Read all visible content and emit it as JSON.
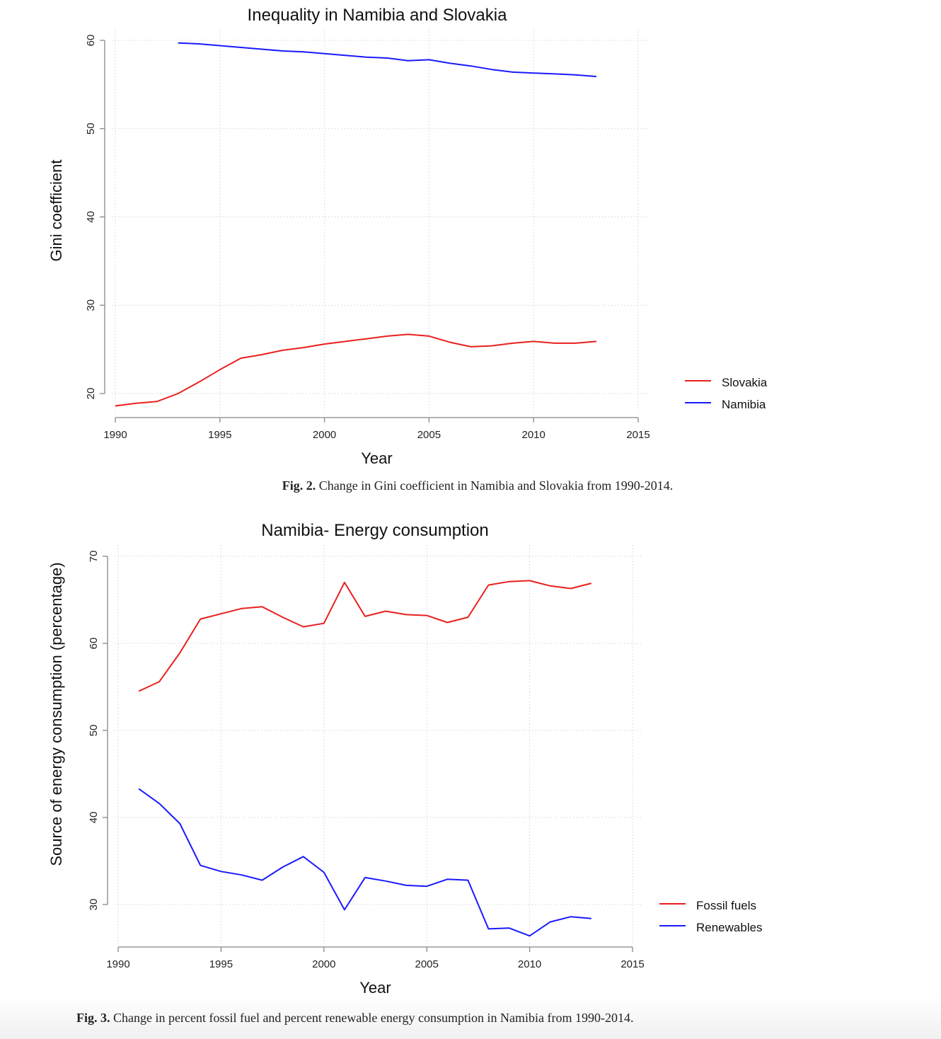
{
  "chart_data": [
    {
      "type": "line",
      "title": "Inequality in Namibia and Slovakia",
      "xlabel": "Year",
      "ylabel": "Gini coefficient",
      "xlim": [
        1990,
        2015
      ],
      "ylim": [
        17.5,
        61
      ],
      "xticks": [
        1990,
        1995,
        2000,
        2005,
        2010,
        2015
      ],
      "yticks": [
        20,
        30,
        40,
        50,
        60
      ],
      "grid": true,
      "legend": "right",
      "series": [
        {
          "name": "Slovakia",
          "color": "#e8201e",
          "x": [
            1990,
            1991,
            1992,
            1993,
            1994,
            1995,
            1996,
            1997,
            1998,
            1999,
            2000,
            2001,
            2002,
            2003,
            2004,
            2005,
            2006,
            2007,
            2008,
            2009,
            2010,
            2011,
            2012,
            2013
          ],
          "y": [
            18.6,
            18.9,
            19.1,
            20.0,
            21.3,
            22.7,
            24.0,
            24.4,
            24.9,
            25.2,
            25.6,
            25.9,
            26.2,
            26.5,
            26.7,
            26.5,
            25.8,
            25.3,
            25.4,
            25.7,
            25.9,
            25.7,
            25.7,
            25.9
          ]
        },
        {
          "name": "Namibia",
          "color": "#1a1aff",
          "x": [
            1993,
            1994,
            1995,
            1996,
            1997,
            1998,
            1999,
            2000,
            2001,
            2002,
            2003,
            2004,
            2005,
            2006,
            2007,
            2008,
            2009,
            2010,
            2011,
            2012,
            2013
          ],
          "y": [
            59.7,
            59.6,
            59.4,
            59.2,
            59.0,
            58.8,
            58.7,
            58.5,
            58.3,
            58.1,
            58.0,
            57.7,
            57.8,
            57.4,
            57.1,
            56.7,
            56.4,
            56.3,
            56.2,
            56.1,
            55.9
          ]
        }
      ]
    },
    {
      "type": "line",
      "title": "Namibia- Energy consumption",
      "xlabel": "Year",
      "ylabel": "Source of energy consumption (percentage)",
      "xlim": [
        1990,
        2015
      ],
      "ylim": [
        25,
        71
      ],
      "xticks": [
        1990,
        1995,
        2000,
        2005,
        2010,
        2015
      ],
      "yticks": [
        30,
        40,
        50,
        60,
        70
      ],
      "grid": true,
      "legend": "right",
      "series": [
        {
          "name": "Fossil fuels",
          "color": "#e8201e",
          "x": [
            1991,
            1992,
            1993,
            1994,
            1995,
            1996,
            1997,
            1998,
            1999,
            2000,
            2001,
            2002,
            2003,
            2004,
            2005,
            2006,
            2007,
            2008,
            2009,
            2010,
            2011,
            2012,
            2013
          ],
          "y": [
            54.5,
            55.6,
            58.9,
            62.8,
            63.4,
            64.0,
            64.2,
            63.0,
            61.9,
            62.3,
            67.0,
            63.1,
            63.7,
            63.3,
            63.2,
            62.4,
            63.0,
            66.7,
            67.1,
            67.2,
            66.6,
            66.3,
            66.9
          ]
        },
        {
          "name": "Renewables",
          "color": "#1a1aff",
          "x": [
            1991,
            1992,
            1993,
            1994,
            1995,
            1996,
            1997,
            1998,
            1999,
            2000,
            2001,
            2002,
            2003,
            2004,
            2005,
            2006,
            2007,
            2008,
            2009,
            2010,
            2011,
            2012,
            2013
          ],
          "y": [
            43.3,
            41.6,
            39.3,
            34.5,
            33.8,
            33.4,
            32.8,
            34.3,
            35.5,
            33.7,
            29.4,
            33.1,
            32.7,
            32.2,
            32.1,
            32.9,
            32.8,
            27.2,
            27.3,
            26.4,
            28.0,
            28.6,
            28.4
          ]
        }
      ]
    }
  ],
  "captions": [
    {
      "label": "Fig. 2.",
      "text": " Change in Gini coefficient in Namibia and Slovakia from 1990-2014."
    },
    {
      "label": "Fig. 3.",
      "text": " Change in percent fossil fuel and percent renewable energy consumption in Namibia from 1990-2014."
    }
  ]
}
